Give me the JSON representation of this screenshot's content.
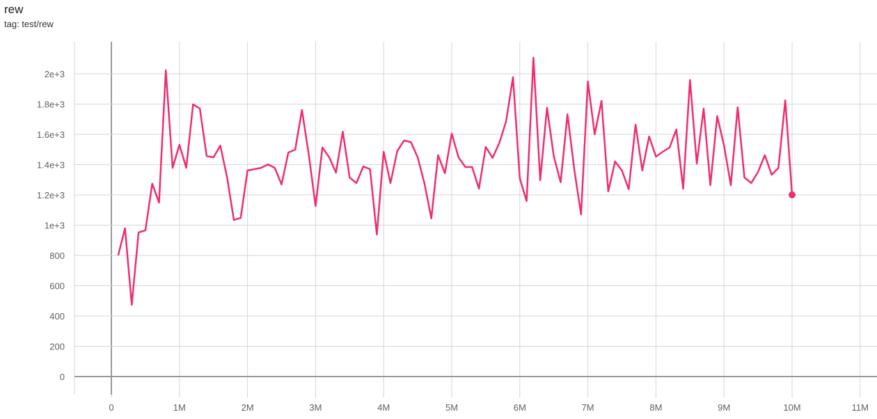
{
  "header": {
    "title": "rew",
    "tag": "tag: test/rew"
  },
  "chart_data": {
    "type": "line",
    "title": "rew",
    "xlabel": "",
    "ylabel": "",
    "xlim": [
      -0.5,
      11.2
    ],
    "ylim": [
      -120,
      2230
    ],
    "grid": true,
    "line_color": "#ef2d6f",
    "x_ticks": [
      0,
      1,
      2,
      3,
      4,
      5,
      6,
      7,
      8,
      9,
      10,
      11
    ],
    "x_tick_labels": [
      "0",
      "1M",
      "2M",
      "3M",
      "4M",
      "5M",
      "6M",
      "7M",
      "8M",
      "9M",
      "10M",
      "11M"
    ],
    "y_ticks": [
      0,
      200,
      400,
      600,
      800,
      1000,
      1200,
      1400,
      1600,
      1800,
      2000
    ],
    "y_tick_labels": [
      "0",
      "200",
      "400",
      "600",
      "800",
      "1e+3",
      "1.2e+3",
      "1.4e+3",
      "1.6e+3",
      "1.8e+3",
      "2e+3"
    ],
    "series": [
      {
        "x_unit": "M steps",
        "x": [
          0.1,
          0.2,
          0.3,
          0.4,
          0.5,
          0.6,
          0.7,
          0.8,
          0.9,
          1.0,
          1.1,
          1.2,
          1.3,
          1.4,
          1.5,
          1.6,
          1.7,
          1.8,
          1.9,
          2.0,
          2.1,
          2.2,
          2.3,
          2.4,
          2.5,
          2.6,
          2.7,
          2.8,
          2.9,
          3.0,
          3.1,
          3.2,
          3.3,
          3.4,
          3.5,
          3.6,
          3.7,
          3.8,
          3.9,
          4.0,
          4.1,
          4.2,
          4.3,
          4.4,
          4.5,
          4.6,
          4.7,
          4.8,
          4.9,
          5.0,
          5.1,
          5.2,
          5.3,
          5.4,
          5.5,
          5.6,
          5.7,
          5.8,
          5.9,
          6.0,
          6.1,
          6.2,
          6.3,
          6.4,
          6.5,
          6.6,
          6.7,
          6.8,
          6.9,
          7.0,
          7.1,
          7.2,
          7.3,
          7.4,
          7.5,
          7.6,
          7.7,
          7.8,
          7.9,
          8.0,
          8.1,
          8.2,
          8.3,
          8.4,
          8.5,
          8.6,
          8.7,
          8.8,
          8.9,
          9.0,
          9.1,
          9.2,
          9.3,
          9.4,
          9.5,
          9.6,
          9.7,
          9.8,
          9.9,
          10.0
        ],
        "y": [
          800,
          980,
          474,
          952,
          966,
          1274,
          1149,
          2023,
          1379,
          1531,
          1379,
          1798,
          1770,
          1457,
          1448,
          1526,
          1315,
          1034,
          1048,
          1361,
          1370,
          1379,
          1402,
          1379,
          1269,
          1480,
          1499,
          1761,
          1467,
          1126,
          1513,
          1448,
          1347,
          1618,
          1315,
          1278,
          1388,
          1370,
          938,
          1485,
          1278,
          1490,
          1559,
          1549,
          1448,
          1274,
          1044,
          1462,
          1343,
          1605,
          1448,
          1384,
          1384,
          1241,
          1517,
          1444,
          1545,
          1687,
          1977,
          1310,
          1159,
          2106,
          1297,
          1775,
          1453,
          1283,
          1733,
          1370,
          1071,
          1949,
          1600,
          1821,
          1223,
          1421,
          1361,
          1237,
          1664,
          1361,
          1586,
          1453,
          1485,
          1513,
          1632,
          1241,
          1959,
          1407,
          1770,
          1264,
          1720,
          1526,
          1264,
          1779,
          1315,
          1278,
          1352,
          1462,
          1333,
          1379,
          1825,
          1200
        ]
      }
    ]
  }
}
